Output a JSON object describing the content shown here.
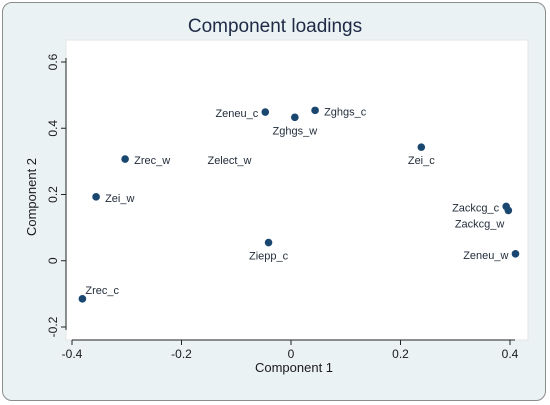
{
  "chart_data": {
    "type": "scatter",
    "title": "Component loadings",
    "xlabel": "Component 1",
    "ylabel": "Component 2",
    "xlim": [
      -0.4,
      0.4
    ],
    "ylim": [
      -0.2,
      0.6
    ],
    "xticks": [
      -0.4,
      -0.2,
      0,
      0.2,
      0.4
    ],
    "yticks": [
      -0.2,
      0,
      0.2,
      0.4,
      0.6
    ],
    "xtick_labels": [
      "-0.4",
      "-0.2",
      "0",
      "0.2",
      "0.4"
    ],
    "ytick_labels": [
      "-0.2",
      "0",
      "0.2",
      "0.4",
      "0.6"
    ],
    "grid": false,
    "marker_color": "#1a476f",
    "points": [
      {
        "label": "Zeneu_c",
        "x": -0.047,
        "y": 0.449,
        "label_pos": "left"
      },
      {
        "label": "Zghgs_w",
        "x": 0.007,
        "y": 0.433,
        "label_pos": "below"
      },
      {
        "label": "Zghgs_c",
        "x": 0.044,
        "y": 0.454,
        "label_pos": "right"
      },
      {
        "label": "Zei_c",
        "x": 0.238,
        "y": 0.343,
        "label_pos": "below"
      },
      {
        "label": "Zrec_w",
        "x": -0.303,
        "y": 0.307,
        "label_pos": "right"
      },
      {
        "label": "Zelect_w",
        "x": -0.169,
        "y": 0.307,
        "label_pos": "right",
        "marker": false
      },
      {
        "label": "Zei_w",
        "x": -0.356,
        "y": 0.193,
        "label_pos": "right"
      },
      {
        "label": "Zackcg_c",
        "x": 0.393,
        "y": 0.164,
        "label_pos": "left"
      },
      {
        "label": "Zackcg_w",
        "x": 0.397,
        "y": 0.152,
        "label_pos": "below-left"
      },
      {
        "label": "Ziepp_c",
        "x": -0.041,
        "y": 0.055,
        "label_pos": "below"
      },
      {
        "label": "Zeneu_w",
        "x": 0.41,
        "y": 0.021,
        "label_pos": "left"
      },
      {
        "label": "Zrec_c",
        "x": -0.381,
        "y": -0.115,
        "label_pos": "above-right"
      }
    ]
  }
}
